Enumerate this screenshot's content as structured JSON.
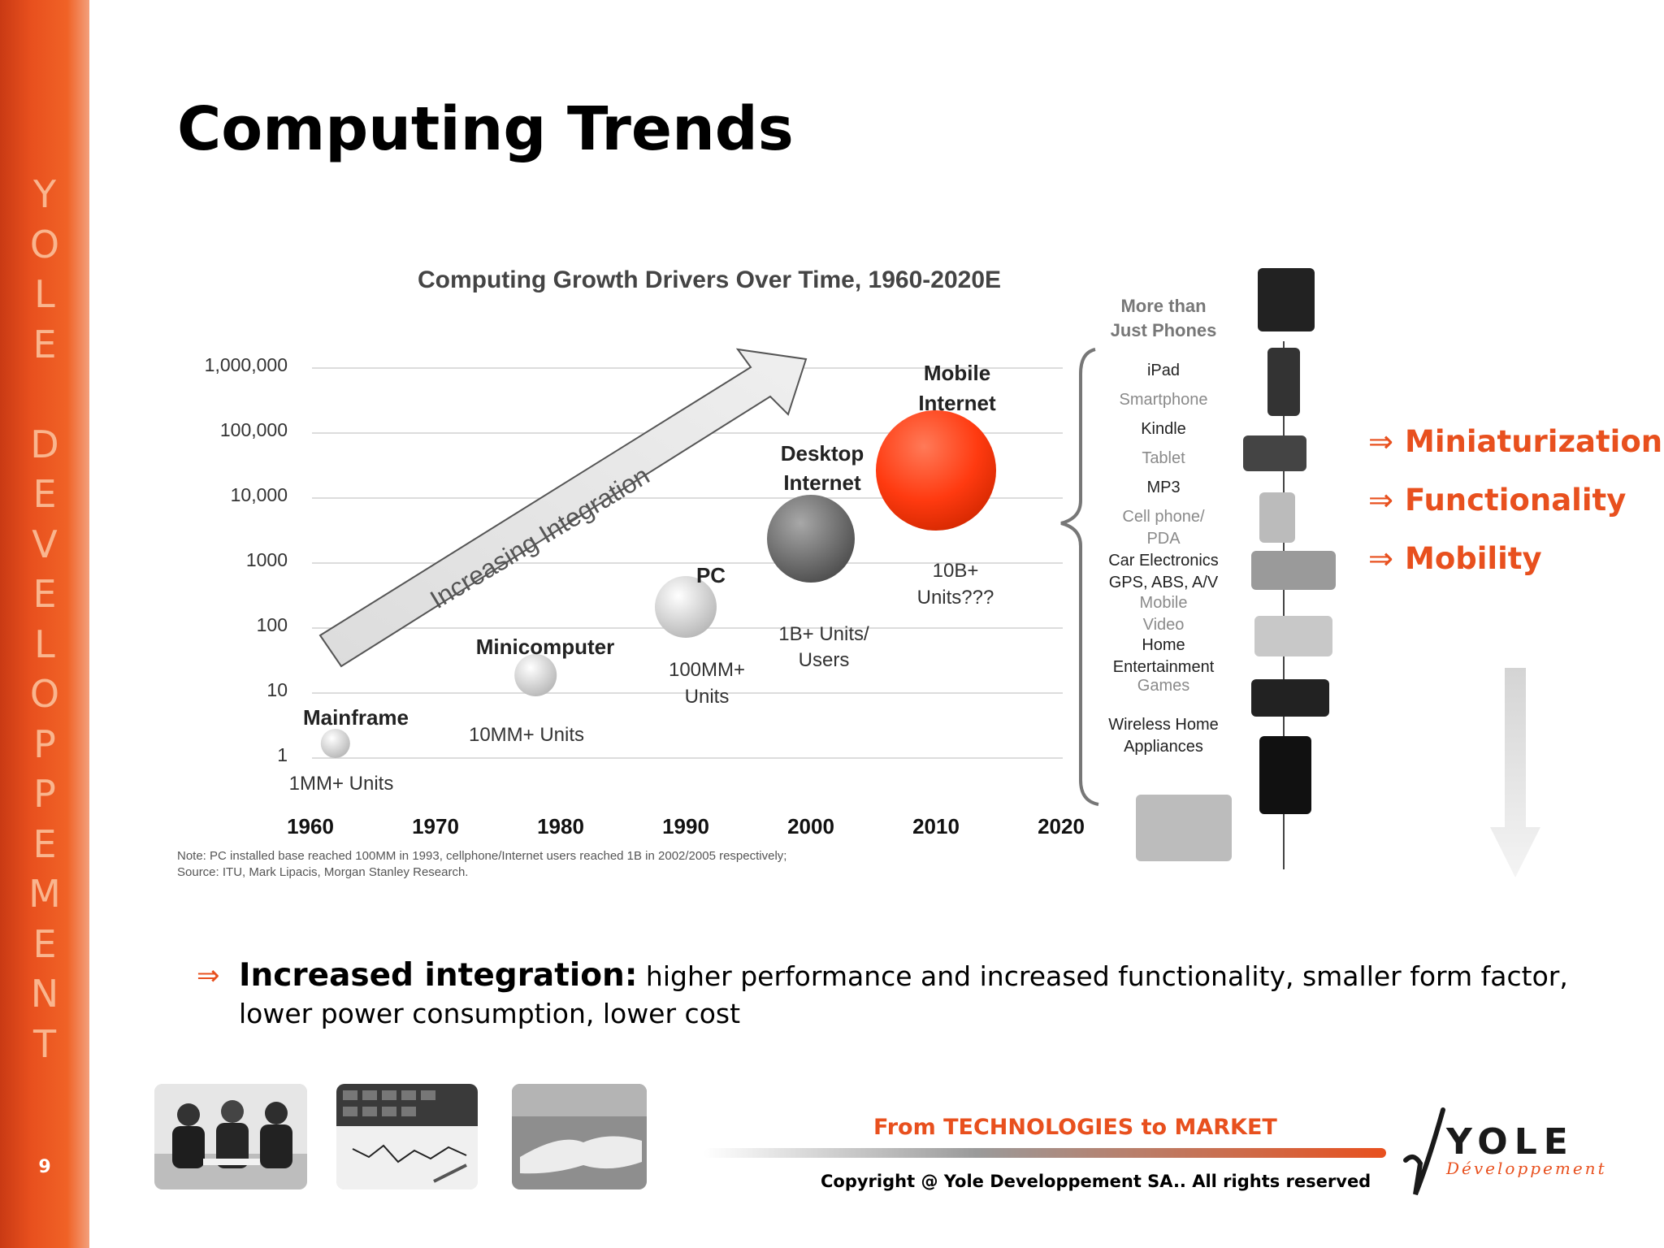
{
  "sidebar": {
    "letters": [
      "Y",
      "O",
      "L",
      "E",
      "",
      "D",
      "E",
      "V",
      "E",
      "L",
      "O",
      "P",
      "P",
      "E",
      "M",
      "E",
      "N",
      "T"
    ],
    "page_number": "9"
  },
  "slide": {
    "title": "Computing Trends"
  },
  "chart_data": {
    "type": "scatter",
    "title": "Computing Growth Drivers Over Time, 1960-2020E",
    "x_ticks": [
      "1960",
      "1970",
      "1980",
      "1990",
      "2000",
      "2010",
      "2020"
    ],
    "y_ticks": [
      "1",
      "10",
      "100",
      "1000",
      "10,000",
      "100,000",
      "1,000,000"
    ],
    "y_scale": "log",
    "arrow_label": "Increasing Integration",
    "series": [
      {
        "name": "Mainframe",
        "year": 1962,
        "value": 1,
        "units": "1MM+ Units",
        "color": "#d8d8d8"
      },
      {
        "name": "Minicomputer",
        "year": 1978,
        "value": 10,
        "units": "10MM+ Units",
        "color": "#d8d8d8"
      },
      {
        "name": "PC",
        "year": 1990,
        "value": 100,
        "units_lines": [
          "100MM+",
          "Units"
        ],
        "color": "#c8c8c8"
      },
      {
        "name_lines": [
          "Desktop",
          "Internet"
        ],
        "year": 2000,
        "value": 1000,
        "units_lines": [
          "1B+ Units/",
          "Users"
        ],
        "color": "#6e6e6e"
      },
      {
        "name_lines": [
          "Mobile",
          "Internet"
        ],
        "year": 2010,
        "value": 10000,
        "units_lines": [
          "10B+",
          "Units???"
        ],
        "color": "#ff3a10"
      }
    ],
    "devices_header": [
      "More than",
      "Just Phones"
    ],
    "devices": [
      {
        "lines": [
          "iPad"
        ],
        "dark": true
      },
      {
        "lines": [
          "Smartphone"
        ],
        "dark": false
      },
      {
        "lines": [
          "Kindle"
        ],
        "dark": true
      },
      {
        "lines": [
          "Tablet"
        ],
        "dark": false
      },
      {
        "lines": [
          "MP3"
        ],
        "dark": true
      },
      {
        "lines": [
          "Cell phone/",
          "PDA"
        ],
        "dark": false
      },
      {
        "lines": [
          "Car Electronics",
          "GPS, ABS, A/V"
        ],
        "dark": true
      },
      {
        "lines": [
          "Mobile",
          "Video"
        ],
        "dark": false
      },
      {
        "lines": [
          "Home",
          "Entertainment"
        ],
        "dark": true
      },
      {
        "lines": [
          "Games"
        ],
        "dark": false
      },
      {
        "lines": [
          "Wireless Home",
          "Appliances"
        ],
        "dark": true
      }
    ],
    "note_lines": [
      "Note: PC installed base reached 100MM in 1993, cellphone/Internet users reached 1B in 2002/2005 respectively;",
      "Source: ITU, Mark Lipacis, Morgan Stanley Research."
    ]
  },
  "trends": [
    {
      "arrow": "⇒",
      "label": "Miniaturization"
    },
    {
      "arrow": "⇒",
      "label": "Functionality"
    },
    {
      "arrow": "⇒",
      "label": "Mobility"
    }
  ],
  "bullet": {
    "arrow": "⇒",
    "lead": "Increased integration:",
    "text": " higher performance and increased functionality, smaller form factor, lower power consumption, lower cost"
  },
  "footer": {
    "tagline": "From TECHNOLOGIES to MARKET",
    "copyright": "Copyright @ Yole Developpement SA.. All rights reserved",
    "logo_name": "YOLE",
    "logo_sub": "Développement"
  },
  "colors": {
    "accent": "#e8501e",
    "sidebar_letters": "#f9b58e"
  }
}
